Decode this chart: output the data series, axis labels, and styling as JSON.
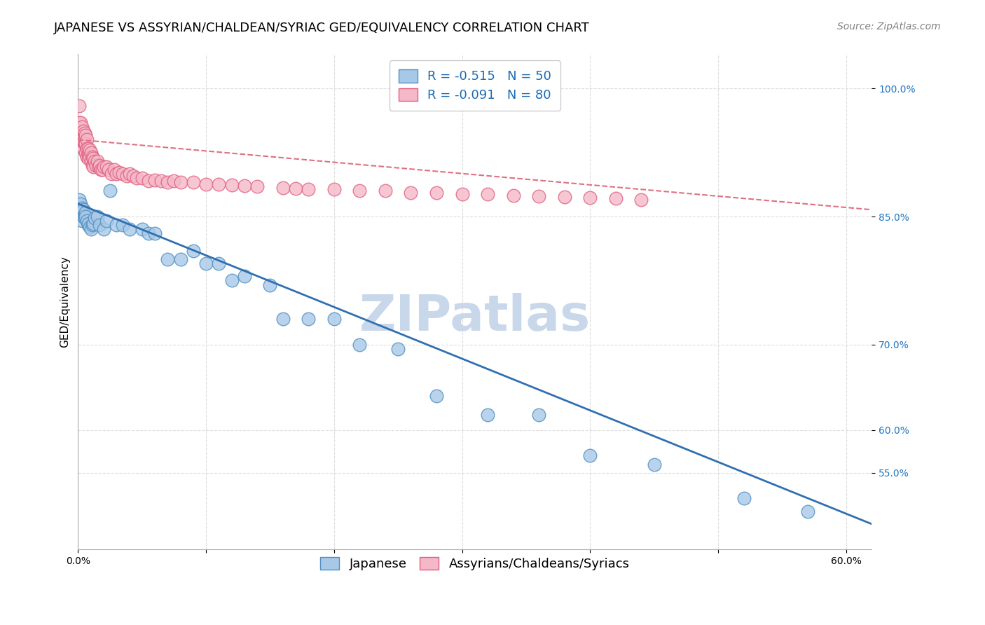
{
  "title": "JAPANESE VS ASSYRIAN/CHALDEAN/SYRIAC GED/EQUIVALENCY CORRELATION CHART",
  "source": "Source: ZipAtlas.com",
  "ylabel": "GED/Equivalency",
  "blue_R": "-0.515",
  "blue_N": "50",
  "pink_R": "-0.091",
  "pink_N": "80",
  "blue_label": "Japanese",
  "pink_label": "Assyrians/Chaldeans/Syriacs",
  "blue_color": "#a8c8e8",
  "pink_color": "#f4b8c8",
  "blue_edge": "#5090c0",
  "pink_edge": "#e06080",
  "blue_line_color": "#3070b0",
  "pink_line_color": "#e07080",
  "blue_scatter_x": [
    0.001,
    0.002,
    0.002,
    0.003,
    0.003,
    0.004,
    0.004,
    0.005,
    0.005,
    0.006,
    0.006,
    0.007,
    0.008,
    0.008,
    0.009,
    0.01,
    0.011,
    0.012,
    0.013,
    0.015,
    0.017,
    0.02,
    0.022,
    0.025,
    0.03,
    0.035,
    0.04,
    0.05,
    0.055,
    0.06,
    0.07,
    0.08,
    0.09,
    0.1,
    0.11,
    0.12,
    0.13,
    0.15,
    0.16,
    0.18,
    0.2,
    0.22,
    0.25,
    0.28,
    0.32,
    0.36,
    0.4,
    0.45,
    0.52,
    0.57
  ],
  "blue_scatter_y": [
    0.87,
    0.865,
    0.855,
    0.845,
    0.86,
    0.85,
    0.858,
    0.852,
    0.848,
    0.855,
    0.85,
    0.845,
    0.84,
    0.842,
    0.838,
    0.835,
    0.84,
    0.842,
    0.848,
    0.85,
    0.84,
    0.835,
    0.845,
    0.88,
    0.84,
    0.84,
    0.835,
    0.835,
    0.83,
    0.83,
    0.8,
    0.8,
    0.81,
    0.795,
    0.795,
    0.775,
    0.78,
    0.77,
    0.73,
    0.73,
    0.73,
    0.7,
    0.695,
    0.64,
    0.618,
    0.618,
    0.57,
    0.56,
    0.52,
    0.505
  ],
  "pink_scatter_x": [
    0.001,
    0.001,
    0.001,
    0.002,
    0.002,
    0.002,
    0.003,
    0.003,
    0.003,
    0.004,
    0.004,
    0.004,
    0.005,
    0.005,
    0.005,
    0.006,
    0.006,
    0.006,
    0.007,
    0.007,
    0.007,
    0.008,
    0.008,
    0.008,
    0.009,
    0.009,
    0.01,
    0.01,
    0.011,
    0.011,
    0.012,
    0.012,
    0.013,
    0.014,
    0.015,
    0.016,
    0.017,
    0.018,
    0.019,
    0.02,
    0.022,
    0.024,
    0.026,
    0.028,
    0.03,
    0.032,
    0.035,
    0.038,
    0.04,
    0.043,
    0.046,
    0.05,
    0.055,
    0.06,
    0.065,
    0.07,
    0.075,
    0.08,
    0.09,
    0.1,
    0.11,
    0.12,
    0.13,
    0.14,
    0.16,
    0.17,
    0.18,
    0.2,
    0.22,
    0.24,
    0.26,
    0.28,
    0.3,
    0.32,
    0.34,
    0.36,
    0.38,
    0.4,
    0.42,
    0.44
  ],
  "pink_scatter_y": [
    0.98,
    0.96,
    0.95,
    0.96,
    0.945,
    0.94,
    0.955,
    0.945,
    0.94,
    0.95,
    0.938,
    0.93,
    0.948,
    0.94,
    0.935,
    0.945,
    0.935,
    0.925,
    0.94,
    0.93,
    0.92,
    0.93,
    0.922,
    0.918,
    0.928,
    0.92,
    0.925,
    0.915,
    0.92,
    0.91,
    0.918,
    0.908,
    0.915,
    0.91,
    0.915,
    0.908,
    0.91,
    0.905,
    0.905,
    0.908,
    0.908,
    0.905,
    0.9,
    0.905,
    0.9,
    0.902,
    0.9,
    0.898,
    0.9,
    0.898,
    0.895,
    0.895,
    0.892,
    0.893,
    0.892,
    0.89,
    0.892,
    0.89,
    0.89,
    0.888,
    0.888,
    0.887,
    0.886,
    0.885,
    0.884,
    0.883,
    0.882,
    0.882,
    0.88,
    0.88,
    0.878,
    0.878,
    0.876,
    0.876,
    0.875,
    0.874,
    0.873,
    0.872,
    0.871,
    0.87
  ],
  "xlim": [
    0.0,
    0.62
  ],
  "ylim": [
    0.46,
    1.04
  ],
  "y_ticks": [
    0.55,
    0.6,
    0.7,
    0.85,
    1.0
  ],
  "y_tick_labels": [
    "55.0%",
    "60.0%",
    "70.0%",
    "85.0%",
    "100.0%"
  ],
  "x_ticks": [
    0.0,
    0.1,
    0.2,
    0.3,
    0.4,
    0.5,
    0.6
  ],
  "x_tick_labels": [
    "0.0%",
    "",
    "",
    "",
    "",
    "",
    "60.0%"
  ],
  "blue_trendline_x": [
    0.0,
    0.62
  ],
  "blue_trendline_y": [
    0.865,
    0.49
  ],
  "pink_trendline_x": [
    0.0,
    0.62
  ],
  "pink_trendline_y": [
    0.94,
    0.858
  ],
  "watermark": "ZIPatlas",
  "watermark_color": "#c8d8ea",
  "watermark_fontsize": 52,
  "title_fontsize": 13,
  "source_fontsize": 10,
  "axis_label_fontsize": 11,
  "tick_fontsize": 10,
  "legend_fontsize": 13,
  "background_color": "#ffffff",
  "grid_color": "#dddddd",
  "ytick_color": "#2176c0",
  "legend_text_color": "#1a6bb5"
}
